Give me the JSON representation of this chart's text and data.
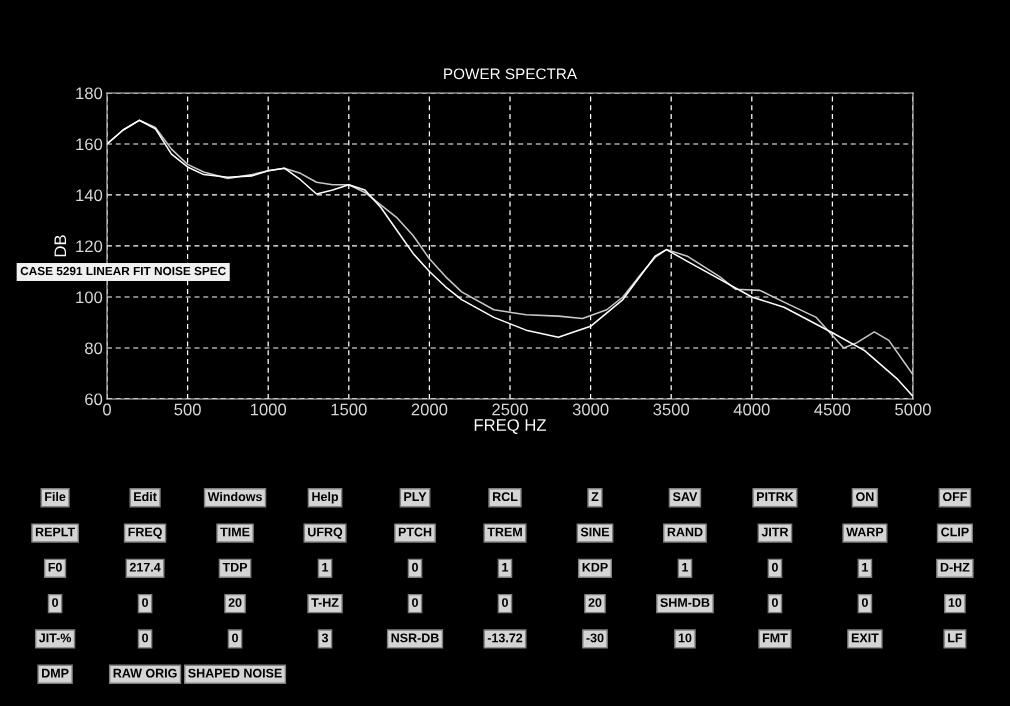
{
  "chart_data": [
    {
      "type": "line",
      "title": "POWER SPECTRA",
      "xlabel": "FREQ HZ",
      "ylabel": "DB",
      "xlim": [
        0,
        5000
      ],
      "xticks": [
        0,
        500,
        1000,
        1500,
        2000,
        2500,
        3000,
        3500,
        4000,
        4500,
        5000
      ],
      "ylim": [
        60,
        180
      ],
      "yticks": [
        60,
        80,
        100,
        120,
        140,
        160,
        180
      ],
      "grid": true,
      "line_style": "solid",
      "annotations": [
        "CASE 5291 LINEAR FIT NOISE SPEC"
      ],
      "series": [
        {
          "color": "#c8c8c8",
          "x": [
            0,
            100,
            200,
            300,
            400,
            500,
            600,
            750,
            900,
            1000,
            1100,
            1200,
            1300,
            1400,
            1500,
            1600,
            1700,
            1800,
            1900,
            2000,
            2100,
            2200,
            2400,
            2600,
            2800,
            2950,
            3100,
            3200,
            3300,
            3400,
            3470,
            3600,
            3800,
            3900,
            4050,
            4200,
            4400,
            4570,
            4650,
            4760,
            4850,
            4950,
            5000
          ],
          "values": [
            160,
            165.5,
            169.3,
            166.5,
            158,
            152,
            149,
            146.5,
            148,
            149.5,
            150.5,
            148.5,
            145,
            144,
            144,
            141,
            136,
            131,
            124,
            115,
            108,
            102,
            95,
            93,
            92.5,
            91.6,
            95,
            100,
            108,
            115.5,
            118.6,
            116,
            108,
            103,
            102.6,
            98,
            92,
            80,
            82,
            86.3,
            83,
            74,
            69.5
          ]
        },
        {
          "color": "#ffffff",
          "x": [
            0,
            100,
            200,
            300,
            400,
            500,
            600,
            750,
            900,
            1000,
            1100,
            1200,
            1300,
            1400,
            1500,
            1600,
            1700,
            1800,
            1900,
            2000,
            2100,
            2200,
            2400,
            2600,
            2800,
            3000,
            3200,
            3400,
            3470,
            3600,
            3800,
            4000,
            4200,
            4500,
            4700,
            4900,
            5000
          ],
          "values": [
            160,
            165.5,
            169.3,
            166,
            156,
            151,
            148,
            147,
            147.5,
            149.5,
            150.5,
            146,
            140.4,
            142,
            144,
            142,
            135,
            126,
            117,
            110,
            104,
            99,
            92,
            87,
            84.2,
            88.5,
            99,
            116,
            118.6,
            114,
            107,
            100,
            96,
            86,
            79,
            68,
            61
          ]
        }
      ]
    },
    {
      "type": "other",
      "annotations": [
        "File",
        "Edit",
        "Windows",
        "Help",
        "PLY",
        "RCL",
        "Z",
        "SAV",
        "PITRK",
        "ON",
        "OFF",
        "REPLT",
        "FREQ",
        "TIME",
        "UFRQ",
        "PTCH",
        "TREM",
        "SINE",
        "RAND",
        "JITR",
        "WARP",
        "CLIP",
        "F0",
        "217.4",
        "TDP",
        "1",
        "0",
        "1",
        "KDP",
        "1",
        "0",
        "1",
        "D-HZ",
        "0",
        "0",
        "20",
        "T-HZ",
        "0",
        "0",
        "20",
        "SHM-DB",
        "0",
        "0",
        "10",
        "JIT-%",
        "0",
        "0",
        "3",
        "NSR-DB",
        "-13.72",
        "-30",
        "10",
        "FMT",
        "EXIT",
        "LF",
        "DMP",
        "RAW ORIG",
        "SHAPED NOISE"
      ]
    }
  ]
}
